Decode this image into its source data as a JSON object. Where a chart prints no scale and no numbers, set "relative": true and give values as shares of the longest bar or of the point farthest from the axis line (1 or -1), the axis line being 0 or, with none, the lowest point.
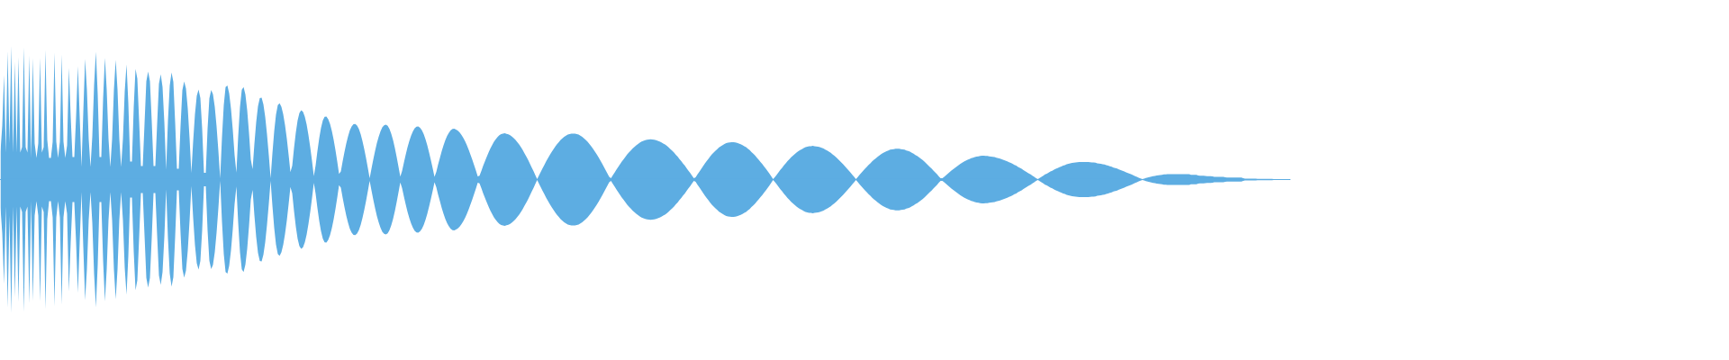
{
  "chart_data": {
    "type": "area",
    "relative": true,
    "categories": [
      null,
      null,
      null,
      null,
      null,
      null,
      null,
      null,
      null,
      null,
      null,
      null,
      null,
      null,
      null,
      null,
      null,
      null,
      null,
      null,
      null,
      null,
      null,
      null,
      null,
      null,
      null,
      null,
      null,
      null,
      null,
      null,
      null,
      null,
      null,
      null,
      null,
      null,
      null,
      null,
      null,
      null,
      null,
      null,
      null,
      null,
      null,
      null,
      null,
      null,
      null,
      null,
      null,
      null,
      null,
      null,
      null,
      null,
      null,
      null,
      null,
      null,
      null,
      null,
      null,
      null,
      null,
      null,
      null,
      null,
      null,
      null,
      null,
      null,
      null,
      null,
      null,
      null,
      null,
      null,
      null,
      null,
      null,
      null,
      null,
      null,
      null,
      null,
      null,
      null,
      null,
      null,
      null,
      null,
      null,
      null,
      null,
      null,
      null,
      null,
      null,
      null,
      null,
      null,
      null,
      null,
      null,
      null,
      null,
      null,
      null,
      null,
      null,
      null,
      null,
      null,
      null,
      null,
      null,
      null,
      null,
      null,
      null,
      null,
      null,
      null,
      null,
      null,
      null,
      null,
      null,
      null,
      null,
      null,
      null,
      null,
      null,
      null,
      null,
      null,
      null,
      null,
      null,
      null,
      null,
      null,
      null,
      null,
      null,
      null,
      null,
      null,
      null,
      null,
      null,
      null,
      null,
      null,
      null,
      null,
      null,
      null,
      null,
      null,
      null,
      null,
      null,
      null,
      null,
      null,
      null,
      null,
      null,
      null,
      null,
      null,
      null,
      null,
      null,
      null,
      null,
      null,
      null,
      null,
      null,
      null,
      null,
      null,
      null,
      null,
      null,
      null,
      null,
      null,
      null,
      null,
      null,
      null,
      null,
      null,
      null,
      null,
      null,
      null,
      null,
      null,
      null,
      null,
      null,
      null,
      null,
      null,
      null,
      null,
      null,
      null,
      null,
      null,
      null,
      null,
      null,
      null,
      null,
      null,
      null,
      null,
      null,
      null,
      null,
      null,
      null,
      null,
      null,
      null,
      null,
      null,
      null,
      null,
      null,
      null,
      null,
      null,
      null,
      null,
      null,
      null,
      null,
      null,
      null,
      null,
      null,
      null,
      null,
      null,
      null,
      null,
      null,
      null,
      null,
      null,
      null,
      null,
      null,
      null,
      null,
      null,
      null,
      null,
      null,
      null,
      null,
      null,
      null,
      null,
      null,
      null,
      null,
      null,
      null,
      null,
      null,
      null,
      null,
      null,
      null,
      null,
      null,
      null,
      null,
      null,
      null,
      null,
      null,
      null,
      null,
      null,
      null,
      null,
      null,
      null,
      null,
      null,
      null,
      null,
      null,
      null,
      null,
      null,
      null,
      null,
      null,
      null,
      null,
      null,
      null,
      null,
      null,
      null,
      null,
      null,
      null,
      null,
      null,
      null,
      null,
      null,
      null,
      null,
      null,
      null,
      null,
      null,
      null,
      null,
      null,
      null,
      null,
      null,
      null,
      null,
      null,
      null,
      null,
      null,
      null,
      null,
      null,
      null,
      null,
      null,
      null,
      null,
      null,
      null,
      null,
      null,
      null,
      null,
      null,
      null,
      null,
      null,
      null,
      null,
      null,
      null,
      null,
      null,
      null,
      null,
      null,
      null,
      null,
      null,
      null,
      null,
      null,
      null,
      null,
      null,
      null,
      null,
      null,
      null,
      null,
      null,
      null,
      null,
      null,
      null,
      null,
      null,
      null,
      null,
      null,
      null,
      null,
      null,
      null,
      null,
      null,
      null,
      null,
      null,
      null,
      null,
      null,
      null,
      null,
      null,
      null,
      null,
      null,
      null,
      null,
      null,
      null,
      null,
      null,
      null,
      null,
      null,
      null,
      null,
      null,
      null,
      null,
      null,
      null,
      null,
      null,
      null,
      null,
      null,
      null,
      null,
      null,
      null,
      null,
      null,
      null,
      null,
      null,
      null,
      null,
      null,
      null,
      null,
      null,
      null,
      null,
      null,
      null,
      null,
      null,
      null,
      null,
      null,
      null,
      null,
      null,
      null,
      null,
      null,
      null,
      null,
      null,
      null,
      null,
      null,
      null,
      null,
      null,
      null,
      null,
      null,
      null,
      null,
      null,
      null,
      null,
      null,
      null,
      null,
      null,
      null,
      null,
      null,
      null,
      null,
      null,
      null,
      null,
      null,
      null,
      null,
      null,
      null,
      null,
      null,
      null,
      null,
      null,
      null,
      null,
      null,
      null,
      null,
      null,
      null,
      null,
      null,
      null,
      null,
      null,
      null,
      null,
      null,
      null,
      null,
      null,
      null,
      null,
      null,
      null,
      null,
      null,
      null,
      null,
      null,
      null,
      null,
      null,
      null,
      null,
      null,
      null,
      null,
      null,
      null,
      null,
      null,
      null,
      null,
      null,
      null,
      null,
      null,
      null,
      null,
      null,
      null,
      null,
      null,
      null,
      null,
      null,
      null,
      null,
      null,
      null,
      null,
      null,
      null,
      null,
      null,
      null,
      null,
      null,
      null,
      null,
      null,
      null,
      null,
      null,
      null,
      null,
      null,
      null,
      null,
      null,
      null,
      null,
      null,
      null,
      null,
      null,
      null,
      null,
      null,
      null,
      null,
      null,
      null,
      null,
      null,
      null,
      null,
      null,
      null,
      null,
      null,
      null,
      null,
      null,
      null,
      null,
      null,
      null,
      null,
      null,
      null,
      null,
      null,
      null,
      null,
      null,
      null,
      null,
      null,
      null,
      null,
      null,
      null,
      null,
      null,
      null,
      null,
      null,
      null,
      null,
      null,
      null,
      null,
      null,
      null,
      null,
      null,
      null,
      null,
      null,
      null,
      null,
      null,
      null,
      null,
      null,
      null,
      null,
      null,
      null,
      null,
      null,
      null,
      null,
      null,
      null,
      null,
      null,
      null,
      null,
      null,
      null,
      null,
      null,
      null,
      null,
      null,
      null,
      null,
      null,
      null,
      null,
      null,
      null,
      null,
      null,
      null,
      null,
      null,
      null,
      null,
      null,
      null,
      null,
      null,
      null,
      null,
      null,
      null,
      null,
      null,
      null,
      null,
      null,
      null,
      null,
      null,
      null,
      null,
      null,
      null,
      null,
      null,
      null,
      null,
      null,
      null,
      null,
      null,
      null,
      null,
      null,
      null,
      null,
      null,
      null
    ],
    "ref_lines": [
      {
        "axis": "y",
        "value": 0,
        "color": "#5dade2"
      }
    ],
    "series": [
      {
        "color": "#5dade2",
        "values": [
          0.208,
          0.404,
          0.782,
          0.202,
          0.962,
          0.27,
          1,
          0.202,
          0.882,
          0.202,
          0.916,
          0.202,
          0.242,
          0.99,
          0.242,
          0.202,
          0.93,
          0.162,
          0.91,
          0.269,
          0.162,
          0.269,
          0.91,
          0.202,
          0.242,
          0.97,
          0.296,
          0.162,
          0.162,
          0.283,
          0.95,
          0.283,
          0.162,
          0.283,
          0.936,
          0.283,
          0.162,
          0.256,
          0.836,
          0.471,
          0.168,
          0.168,
          0.471,
          0.848,
          0.471,
          0.094,
          0.505,
          0.902,
          0.673,
          0.303,
          0.094,
          0.323,
          0.707,
          0.956,
          0.64,
          0.168,
          0.168,
          0.606,
          0.91,
          0.673,
          0.303,
          0.094,
          0.303,
          0.673,
          0.896,
          0.673,
          0.303,
          0.094,
          0.303,
          0.66,
          0.862,
          0.572,
          0.135,
          0.135,
          0.539,
          0.828,
          0.754,
          0.438,
          0.101,
          0.101,
          0.418,
          0.736,
          0.808,
          0.736,
          0.438,
          0.101,
          0.101,
          0.418,
          0.718,
          0.788,
          0.692,
          0.43,
          0.074,
          0.438,
          0.704,
          0.802,
          0.73,
          0.43,
          0.08,
          0.08,
          0.4,
          0.668,
          0.734,
          0.682,
          0.532,
          0.31,
          0.048,
          0.286,
          0.49,
          0.626,
          0.674,
          0.61,
          0.38,
          0.05,
          0.05,
          0.38,
          0.608,
          0.67,
          0.638,
          0.544,
          0.398,
          0.214,
          0.01,
          0.314,
          0.558,
          0.692,
          0.704,
          0.644,
          0.53,
          0.372,
          0.184,
          0.052,
          0.324,
          0.544,
          0.672,
          0.692,
          0.636,
          0.518,
          0.35,
          0.15,
          0.078,
          0.268,
          0.43,
          0.548,
          0.61,
          0.612,
          0.562,
          0.47,
          0.338,
          0.182,
          0.01,
          0.196,
          0.362,
          0.486,
          0.558,
          0.57,
          0.544,
          0.488,
          0.408,
          0.306,
          0.186,
          0.056,
          0.102,
          0.236,
          0.352,
          0.442,
          0.498,
          0.518,
          0.506,
          0.47,
          0.412,
          0.334,
          0.242,
          0.138,
          0.026,
          0.106,
          0.214,
          0.31,
          0.388,
          0.442,
          0.47,
          0.472,
          0.452,
          0.416,
          0.364,
          0.298,
          0.22,
          0.134,
          0.042,
          0.06,
          0.136,
          0.206,
          0.27,
          0.324,
          0.368,
          0.398,
          0.414,
          0.416,
          0.404,
          0.378,
          0.34,
          0.288,
          0.228,
          0.16,
          0.086,
          0.01,
          0.08,
          0.15,
          0.214,
          0.272,
          0.32,
          0.36,
          0.39,
          0.406,
          0.41,
          0.402,
          0.378,
          0.342,
          0.294,
          0.236,
          0.168,
          0.096,
          0.022,
          0.064,
          0.126,
          0.186,
          0.24,
          0.288,
          0.328,
          0.36,
          0.384,
          0.396,
          0.398,
          0.388,
          0.368,
          0.34,
          0.302,
          0.256,
          0.202,
          0.144,
          0.084,
          0.02,
          0.058,
          0.112,
          0.162,
          0.212,
          0.256,
          0.294,
          0.326,
          0.35,
          0.368,
          0.378,
          0.38,
          0.374,
          0.366,
          0.352,
          0.334,
          0.312,
          0.286,
          0.256,
          0.222,
          0.186,
          0.148,
          0.108,
          0.068,
          0.024,
          0.028,
          0.064,
          0.102,
          0.136,
          0.17,
          0.202,
          0.232,
          0.258,
          0.282,
          0.302,
          0.318,
          0.332,
          0.34,
          0.344,
          0.346,
          0.342,
          0.338,
          0.332,
          0.322,
          0.31,
          0.296,
          0.28,
          0.262,
          0.242,
          0.22,
          0.196,
          0.172,
          0.146,
          0.118,
          0.09,
          0.062,
          0.032,
          0.004,
          0.03,
          0.058,
          0.084,
          0.11,
          0.136,
          0.16,
          0.184,
          0.206,
          0.226,
          0.246,
          0.264,
          0.28,
          0.296,
          0.308,
          0.32,
          0.328,
          0.336,
          0.34,
          0.344,
          0.344,
          0.344,
          0.34,
          0.336,
          0.328,
          0.32,
          0.308,
          0.296,
          0.282,
          0.266,
          0.25,
          0.23,
          0.21,
          0.19,
          0.168,
          0.144,
          0.122,
          0.096,
          0.07,
          0.046,
          0.02,
          0.01,
          0.032,
          0.052,
          0.074,
          0.094,
          0.114,
          0.134,
          0.152,
          0.17,
          0.188,
          0.204,
          0.218,
          0.232,
          0.244,
          0.256,
          0.266,
          0.276,
          0.284,
          0.29,
          0.294,
          0.298,
          0.3,
          0.302,
          0.3,
          0.298,
          0.294,
          0.29,
          0.284,
          0.278,
          0.27,
          0.262,
          0.252,
          0.24,
          0.228,
          0.216,
          0.202,
          0.186,
          0.172,
          0.154,
          0.138,
          0.12,
          0.104,
          0.084,
          0.066,
          0.048,
          0.028,
          0.01,
          0.016,
          0.038,
          0.058,
          0.078,
          0.098,
          0.118,
          0.136,
          0.154,
          0.172,
          0.188,
          0.202,
          0.216,
          0.228,
          0.24,
          0.25,
          0.258,
          0.266,
          0.272,
          0.276,
          0.278,
          0.28,
          0.28,
          0.278,
          0.274,
          0.27,
          0.264,
          0.258,
          0.25,
          0.242,
          0.23,
          0.22,
          0.206,
          0.194,
          0.18,
          0.164,
          0.148,
          0.132,
          0.116,
          0.098,
          0.08,
          0.062,
          0.044,
          0.024,
          0.004,
          0.018,
          0.036,
          0.054,
          0.072,
          0.088,
          0.106,
          0.122,
          0.138,
          0.152,
          0.166,
          0.178,
          0.19,
          0.202,
          0.212,
          0.22,
          0.228,
          0.236,
          0.242,
          0.246,
          0.25,
          0.25,
          0.252,
          0.25,
          0.248,
          0.246,
          0.242,
          0.238,
          0.232,
          0.224,
          0.218,
          0.208,
          0.2,
          0.188,
          0.178,
          0.166,
          0.154,
          0.14,
          0.126,
          0.112,
          0.098,
          0.082,
          0.068,
          0.052,
          0.036,
          0.02,
          0.004,
          0.018,
          0.036,
          0.05,
          0.066,
          0.08,
          0.094,
          0.11,
          0.122,
          0.136,
          0.148,
          0.158,
          0.17,
          0.18,
          0.19,
          0.198,
          0.206,
          0.212,
          0.218,
          0.224,
          0.226,
          0.228,
          0.23,
          0.23,
          0.23,
          0.228,
          0.226,
          0.224,
          0.218,
          0.214,
          0.208,
          0.2,
          0.194,
          0.184,
          0.176,
          0.166,
          0.156,
          0.146,
          0.134,
          0.122,
          0.108,
          0.094,
          0.082,
          0.068,
          0.054,
          0.04,
          0.024,
          0.01,
          0.01,
          0.02,
          0.032,
          0.044,
          0.056,
          0.068,
          0.078,
          0.088,
          0.098,
          0.108,
          0.118,
          0.126,
          0.134,
          0.142,
          0.148,
          0.154,
          0.16,
          0.164,
          0.168,
          0.172,
          0.174,
          0.176,
          0.178,
          0.178,
          0.176,
          0.176,
          0.174,
          0.172,
          0.17,
          0.168,
          0.164,
          0.16,
          0.156,
          0.152,
          0.146,
          0.142,
          0.136,
          0.13,
          0.124,
          0.118,
          0.11,
          0.104,
          0.094,
          0.088,
          0.08,
          0.07,
          0.062,
          0.054,
          0.046,
          0.038,
          0.028,
          0.02,
          0.01,
          0.004,
          0.012,
          0.02,
          0.028,
          0.038,
          0.044,
          0.052,
          0.06,
          0.066,
          0.074,
          0.08,
          0.086,
          0.092,
          0.098,
          0.104,
          0.108,
          0.114,
          0.118,
          0.122,
          0.124,
          0.126,
          0.128,
          0.13,
          0.132,
          0.132,
          0.132,
          0.132,
          0.132,
          0.132,
          0.13,
          0.128,
          0.128,
          0.126,
          0.122,
          0.12,
          0.118,
          0.114,
          0.112,
          0.108,
          0.104,
          0.1,
          0.096,
          0.09,
          0.086,
          0.082,
          0.076,
          0.07,
          0.066,
          0.06,
          0.054,
          0.048,
          0.044,
          0.038,
          0.032,
          0.026,
          0.02,
          0.014,
          0.008,
          0.003,
          0.007,
          0.011,
          0.015,
          0.018,
          0.022,
          0.025,
          0.027,
          0.03,
          0.032,
          0.034,
          0.036,
          0.038,
          0.039,
          0.04,
          0.04,
          0.04,
          0.04,
          0.04,
          0.04,
          0.04,
          0.04,
          0.04,
          0.04,
          0.04,
          0.04,
          0.04,
          0.036,
          0.035,
          0.035,
          0.035,
          0.03,
          0.029,
          0.029,
          0.029,
          0.027,
          0.026,
          0.026,
          0.026,
          0.024,
          0.02,
          0.02,
          0.02,
          0.02,
          0.02,
          0.02,
          0.017,
          0.015,
          0.015,
          0.015,
          0.015,
          0.015,
          0.015,
          0.015,
          0.015,
          0.015,
          0.01,
          0.007,
          0.007,
          0.007,
          0.007,
          0.007,
          0.007,
          0.007,
          0.005,
          0.005,
          0.005,
          0.005,
          0.005,
          0.005,
          0.005,
          0.005,
          0.005,
          0.003,
          0.003,
          0.003,
          0.003,
          0.003,
          0.003,
          0.003,
          0.003,
          0.003,
          0.003
        ]
      },
      {
        "color": "#5dade2",
        "values": [
          -0.208,
          -0.404,
          -0.782,
          -0.202,
          -0.962,
          -0.27,
          -1,
          -0.202,
          -0.882,
          -0.202,
          -0.916,
          -0.202,
          -0.242,
          -0.99,
          -0.242,
          -0.202,
          -0.93,
          -0.162,
          -0.91,
          -0.269,
          -0.162,
          -0.269,
          -0.91,
          -0.202,
          -0.242,
          -0.97,
          -0.296,
          -0.162,
          -0.162,
          -0.283,
          -0.95,
          -0.283,
          -0.162,
          -0.283,
          -0.936,
          -0.283,
          -0.162,
          -0.256,
          -0.836,
          -0.471,
          -0.168,
          -0.168,
          -0.471,
          -0.848,
          -0.471,
          -0.094,
          -0.505,
          -0.902,
          -0.673,
          -0.303,
          -0.094,
          -0.323,
          -0.707,
          -0.956,
          -0.64,
          -0.168,
          -0.168,
          -0.606,
          -0.91,
          -0.673,
          -0.303,
          -0.094,
          -0.303,
          -0.673,
          -0.896,
          -0.673,
          -0.303,
          -0.094,
          -0.303,
          -0.66,
          -0.862,
          -0.572,
          -0.135,
          -0.135,
          -0.539,
          -0.828,
          -0.754,
          -0.438,
          -0.101,
          -0.101,
          -0.418,
          -0.736,
          -0.808,
          -0.736,
          -0.438,
          -0.101,
          -0.101,
          -0.418,
          -0.718,
          -0.788,
          -0.692,
          -0.43,
          -0.074,
          -0.438,
          -0.704,
          -0.802,
          -0.73,
          -0.43,
          -0.08,
          -0.08,
          -0.4,
          -0.668,
          -0.734,
          -0.682,
          -0.532,
          -0.31,
          -0.048,
          -0.286,
          -0.49,
          -0.626,
          -0.674,
          -0.61,
          -0.38,
          -0.05,
          -0.05,
          -0.38,
          -0.608,
          -0.67,
          -0.638,
          -0.544,
          -0.398,
          -0.214,
          -0.01,
          -0.314,
          -0.558,
          -0.692,
          -0.704,
          -0.644,
          -0.53,
          -0.372,
          -0.184,
          -0.052,
          -0.324,
          -0.544,
          -0.672,
          -0.692,
          -0.636,
          -0.518,
          -0.35,
          -0.15,
          -0.078,
          -0.268,
          -0.43,
          -0.548,
          -0.61,
          -0.612,
          -0.562,
          -0.47,
          -0.338,
          -0.182,
          -0.01,
          -0.196,
          -0.362,
          -0.486,
          -0.558,
          -0.57,
          -0.544,
          -0.488,
          -0.408,
          -0.306,
          -0.186,
          -0.056,
          -0.102,
          -0.236,
          -0.352,
          -0.442,
          -0.498,
          -0.518,
          -0.506,
          -0.47,
          -0.412,
          -0.334,
          -0.242,
          -0.138,
          -0.026,
          -0.106,
          -0.214,
          -0.31,
          -0.388,
          -0.442,
          -0.47,
          -0.472,
          -0.452,
          -0.416,
          -0.364,
          -0.298,
          -0.22,
          -0.134,
          -0.042,
          -0.06,
          -0.136,
          -0.206,
          -0.27,
          -0.324,
          -0.368,
          -0.398,
          -0.414,
          -0.416,
          -0.404,
          -0.378,
          -0.34,
          -0.288,
          -0.228,
          -0.16,
          -0.086,
          -0.01,
          -0.08,
          -0.15,
          -0.214,
          -0.272,
          -0.32,
          -0.36,
          -0.39,
          -0.406,
          -0.41,
          -0.402,
          -0.378,
          -0.342,
          -0.294,
          -0.236,
          -0.168,
          -0.096,
          -0.022,
          -0.064,
          -0.126,
          -0.186,
          -0.24,
          -0.288,
          -0.328,
          -0.36,
          -0.384,
          -0.396,
          -0.398,
          -0.388,
          -0.368,
          -0.34,
          -0.302,
          -0.256,
          -0.202,
          -0.144,
          -0.084,
          -0.02,
          -0.058,
          -0.112,
          -0.162,
          -0.212,
          -0.256,
          -0.294,
          -0.326,
          -0.35,
          -0.368,
          -0.378,
          -0.38,
          -0.374,
          -0.366,
          -0.352,
          -0.334,
          -0.312,
          -0.286,
          -0.256,
          -0.222,
          -0.186,
          -0.148,
          -0.108,
          -0.068,
          -0.024,
          -0.028,
          -0.064,
          -0.102,
          -0.136,
          -0.17,
          -0.202,
          -0.232,
          -0.258,
          -0.282,
          -0.302,
          -0.318,
          -0.332,
          -0.34,
          -0.344,
          -0.346,
          -0.342,
          -0.338,
          -0.332,
          -0.322,
          -0.31,
          -0.296,
          -0.28,
          -0.262,
          -0.242,
          -0.22,
          -0.196,
          -0.172,
          -0.146,
          -0.118,
          -0.09,
          -0.062,
          -0.032,
          -0.004,
          -0.03,
          -0.058,
          -0.084,
          -0.11,
          -0.136,
          -0.16,
          -0.184,
          -0.206,
          -0.226,
          -0.246,
          -0.264,
          -0.28,
          -0.296,
          -0.308,
          -0.32,
          -0.328,
          -0.336,
          -0.34,
          -0.344,
          -0.344,
          -0.344,
          -0.34,
          -0.336,
          -0.328,
          -0.32,
          -0.308,
          -0.296,
          -0.282,
          -0.266,
          -0.25,
          -0.23,
          -0.21,
          -0.19,
          -0.168,
          -0.144,
          -0.122,
          -0.096,
          -0.07,
          -0.046,
          -0.02,
          -0.01,
          -0.032,
          -0.052,
          -0.074,
          -0.094,
          -0.114,
          -0.134,
          -0.152,
          -0.17,
          -0.188,
          -0.204,
          -0.218,
          -0.232,
          -0.244,
          -0.256,
          -0.266,
          -0.276,
          -0.284,
          -0.29,
          -0.294,
          -0.298,
          -0.3,
          -0.302,
          -0.3,
          -0.298,
          -0.294,
          -0.29,
          -0.284,
          -0.278,
          -0.27,
          -0.262,
          -0.252,
          -0.24,
          -0.228,
          -0.216,
          -0.202,
          -0.186,
          -0.172,
          -0.154,
          -0.138,
          -0.12,
          -0.104,
          -0.084,
          -0.066,
          -0.048,
          -0.028,
          -0.01,
          -0.016,
          -0.038,
          -0.058,
          -0.078,
          -0.098,
          -0.118,
          -0.136,
          -0.154,
          -0.172,
          -0.188,
          -0.202,
          -0.216,
          -0.228,
          -0.24,
          -0.25,
          -0.258,
          -0.266,
          -0.272,
          -0.276,
          -0.278,
          -0.28,
          -0.28,
          -0.278,
          -0.274,
          -0.27,
          -0.264,
          -0.258,
          -0.25,
          -0.242,
          -0.23,
          -0.22,
          -0.206,
          -0.194,
          -0.18,
          -0.164,
          -0.148,
          -0.132,
          -0.116,
          -0.098,
          -0.08,
          -0.062,
          -0.044,
          -0.024,
          -0.004,
          -0.018,
          -0.036,
          -0.054,
          -0.072,
          -0.088,
          -0.106,
          -0.122,
          -0.138,
          -0.152,
          -0.166,
          -0.178,
          -0.19,
          -0.202,
          -0.212,
          -0.22,
          -0.228,
          -0.236,
          -0.242,
          -0.246,
          -0.25,
          -0.25,
          -0.252,
          -0.25,
          -0.248,
          -0.246,
          -0.242,
          -0.238,
          -0.232,
          -0.224,
          -0.218,
          -0.208,
          -0.2,
          -0.188,
          -0.178,
          -0.166,
          -0.154,
          -0.14,
          -0.126,
          -0.112,
          -0.098,
          -0.082,
          -0.068,
          -0.052,
          -0.036,
          -0.02,
          -0.004,
          -0.018,
          -0.036,
          -0.05,
          -0.066,
          -0.08,
          -0.094,
          -0.11,
          -0.122,
          -0.136,
          -0.148,
          -0.158,
          -0.17,
          -0.18,
          -0.19,
          -0.198,
          -0.206,
          -0.212,
          -0.218,
          -0.224,
          -0.226,
          -0.228,
          -0.23,
          -0.23,
          -0.23,
          -0.228,
          -0.226,
          -0.224,
          -0.218,
          -0.214,
          -0.208,
          -0.2,
          -0.194,
          -0.184,
          -0.176,
          -0.166,
          -0.156,
          -0.146,
          -0.134,
          -0.122,
          -0.108,
          -0.094,
          -0.082,
          -0.068,
          -0.054,
          -0.04,
          -0.024,
          -0.01,
          -0.01,
          -0.02,
          -0.032,
          -0.044,
          -0.056,
          -0.068,
          -0.078,
          -0.088,
          -0.098,
          -0.108,
          -0.118,
          -0.126,
          -0.134,
          -0.142,
          -0.148,
          -0.154,
          -0.16,
          -0.164,
          -0.168,
          -0.172,
          -0.174,
          -0.176,
          -0.178,
          -0.178,
          -0.176,
          -0.176,
          -0.174,
          -0.172,
          -0.17,
          -0.168,
          -0.164,
          -0.16,
          -0.156,
          -0.152,
          -0.146,
          -0.142,
          -0.136,
          -0.13,
          -0.124,
          -0.118,
          -0.11,
          -0.104,
          -0.094,
          -0.088,
          -0.08,
          -0.07,
          -0.062,
          -0.054,
          -0.046,
          -0.038,
          -0.028,
          -0.02,
          -0.01,
          -0.004,
          -0.012,
          -0.02,
          -0.028,
          -0.038,
          -0.044,
          -0.052,
          -0.06,
          -0.066,
          -0.074,
          -0.08,
          -0.086,
          -0.092,
          -0.098,
          -0.104,
          -0.108,
          -0.114,
          -0.118,
          -0.122,
          -0.124,
          -0.126,
          -0.128,
          -0.13,
          -0.132,
          -0.132,
          -0.132,
          -0.132,
          -0.132,
          -0.132,
          -0.13,
          -0.128,
          -0.128,
          -0.126,
          -0.122,
          -0.12,
          -0.118,
          -0.114,
          -0.112,
          -0.108,
          -0.104,
          -0.1,
          -0.096,
          -0.09,
          -0.086,
          -0.082,
          -0.076,
          -0.07,
          -0.066,
          -0.06,
          -0.054,
          -0.048,
          -0.044,
          -0.038,
          -0.032,
          -0.026,
          -0.02,
          -0.014,
          -0.008,
          -0.003,
          -0.007,
          -0.011,
          -0.015,
          -0.018,
          -0.022,
          -0.025,
          -0.027,
          -0.03,
          -0.032,
          -0.034,
          -0.036,
          -0.038,
          -0.039,
          -0.04,
          -0.04,
          -0.04,
          -0.04,
          -0.04,
          -0.04,
          -0.04,
          -0.04,
          -0.04,
          -0.04,
          -0.04,
          -0.04,
          -0.04,
          -0.036,
          -0.035,
          -0.035,
          -0.035,
          -0.03,
          -0.029,
          -0.029,
          -0.029,
          -0.027,
          -0.026,
          -0.026,
          -0.026,
          -0.024,
          -0.02,
          -0.02,
          -0.02,
          -0.02,
          -0.02,
          -0.02,
          -0.017,
          -0.015,
          -0.015,
          -0.015,
          -0.015,
          -0.015,
          -0.015,
          -0.015,
          -0.015,
          -0.015,
          -0.01,
          -0.007,
          -0.007,
          -0.007,
          -0.007,
          -0.007,
          -0.007,
          -0.007,
          -0.005,
          -0.005,
          -0.005,
          -0.005,
          -0.005,
          -0.005,
          -0.005,
          -0.005,
          -0.005,
          -0.003,
          -0.003,
          -0.003,
          -0.003,
          -0.003,
          -0.003,
          -0.003,
          -0.003,
          -0.003,
          -0.003
        ]
      }
    ]
  }
}
